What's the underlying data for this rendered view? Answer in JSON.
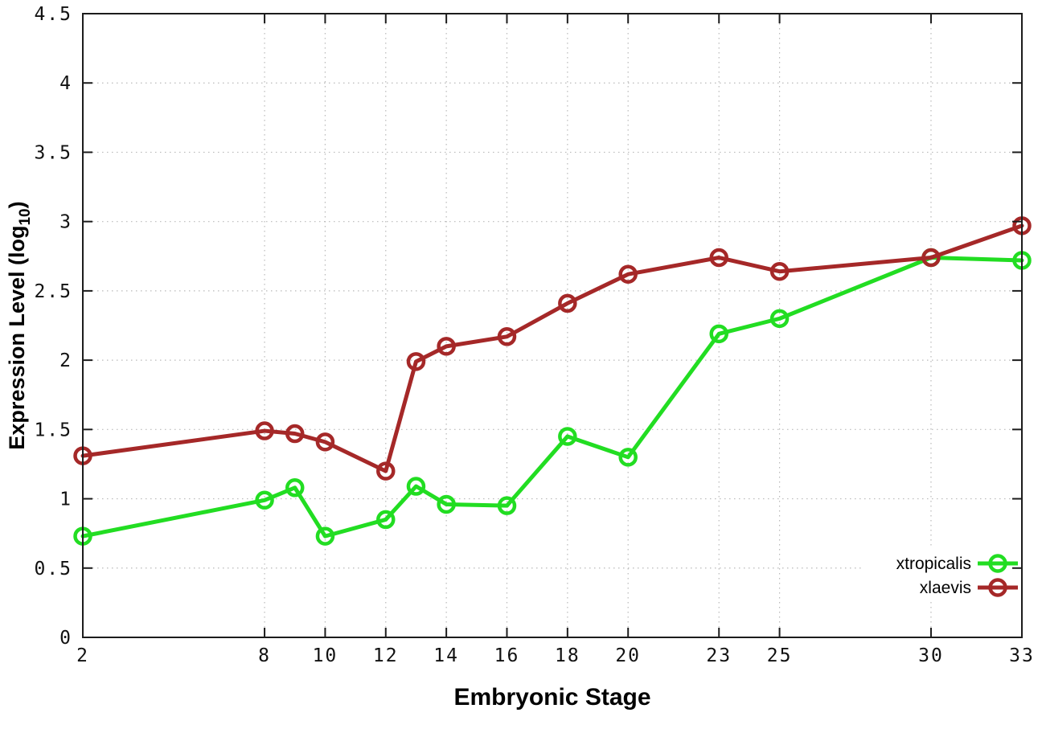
{
  "page": {
    "background": "#ffffff"
  },
  "colors": {
    "axis": "#1c1c1c",
    "grid": "#b9b9b9",
    "tick_label": "#111111",
    "background": "#ffffff",
    "xtropicalis": "#22dd22",
    "xlaevis": "#a52828"
  },
  "chart_data": {
    "type": "line",
    "title": "",
    "xlabel": "Embryonic Stage",
    "ylabel": {
      "prefix": "Expression Level (log",
      "subscript": "10",
      "suffix": ")"
    },
    "xlim": [
      2,
      33
    ],
    "ylim": [
      0,
      4.5
    ],
    "grid": true,
    "grid_style": "dotted",
    "legend_position": "inside-bottom-right",
    "x_ticks": [
      {
        "value": 2,
        "label": "2"
      },
      {
        "value": 8,
        "label": "8"
      },
      {
        "value": 10,
        "label": "10"
      },
      {
        "value": 12,
        "label": "12"
      },
      {
        "value": 14,
        "label": "14"
      },
      {
        "value": 16,
        "label": "16"
      },
      {
        "value": 18,
        "label": "18"
      },
      {
        "value": 20,
        "label": "20"
      },
      {
        "value": 23,
        "label": "23"
      },
      {
        "value": 25,
        "label": "25"
      },
      {
        "value": 30,
        "label": "30"
      },
      {
        "value": 33,
        "label": "33"
      }
    ],
    "y_ticks": [
      {
        "value": 0,
        "label": "0"
      },
      {
        "value": 0.5,
        "label": "0.5"
      },
      {
        "value": 1,
        "label": "1"
      },
      {
        "value": 1.5,
        "label": "1.5"
      },
      {
        "value": 2,
        "label": "2"
      },
      {
        "value": 2.5,
        "label": "2.5"
      },
      {
        "value": 3,
        "label": "3"
      },
      {
        "value": 3.5,
        "label": "3.5"
      },
      {
        "value": 4,
        "label": "4"
      },
      {
        "value": 4.5,
        "label": "4.5"
      }
    ],
    "x": [
      2,
      8,
      9,
      10,
      12,
      13,
      14,
      16,
      18,
      20,
      23,
      25,
      30,
      33
    ],
    "series": [
      {
        "name": "xtropicalis",
        "color": "#22dd22",
        "marker": "open-circle",
        "values": [
          0.73,
          0.99,
          1.08,
          0.73,
          0.85,
          1.09,
          0.96,
          0.95,
          1.45,
          1.3,
          2.19,
          2.3,
          2.74,
          2.72
        ]
      },
      {
        "name": "xlaevis",
        "color": "#a52828",
        "marker": "open-circle",
        "values": [
          1.31,
          1.49,
          1.47,
          1.41,
          1.2,
          1.99,
          2.1,
          2.17,
          2.41,
          2.62,
          2.74,
          2.64,
          2.74,
          2.97
        ]
      }
    ]
  }
}
